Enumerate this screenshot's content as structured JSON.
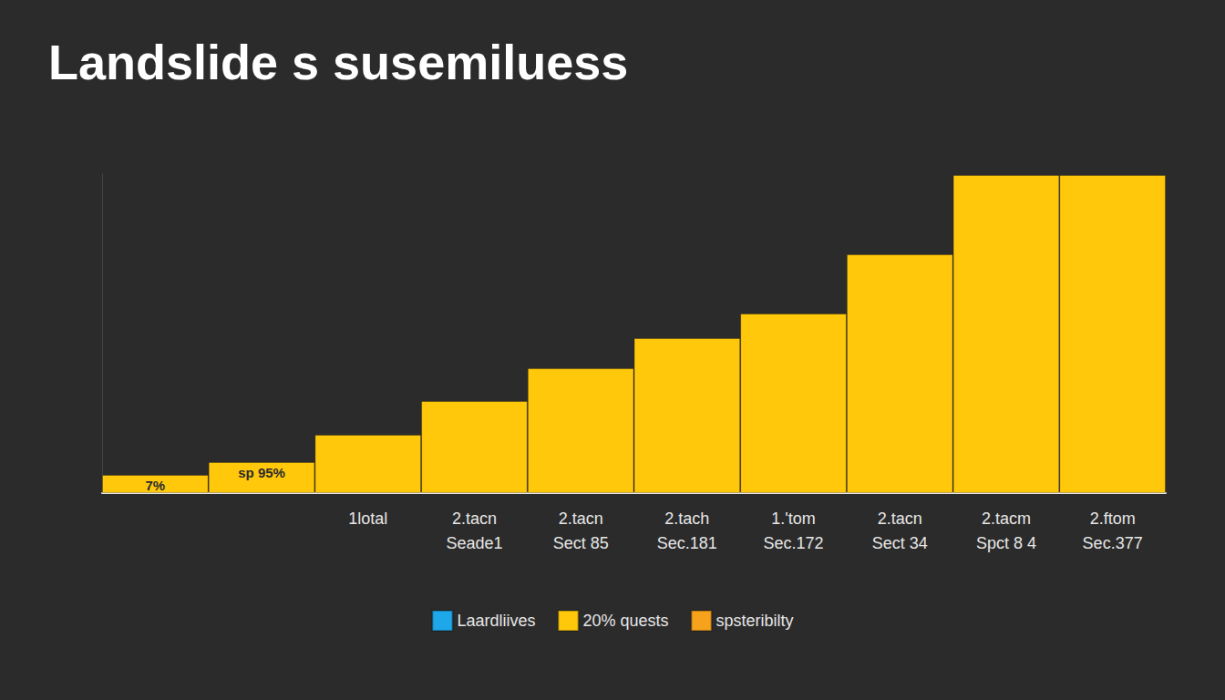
{
  "chart_data": {
    "type": "bar",
    "title": "Landslide s susemiluess",
    "categories": [
      null,
      null,
      "1lotal",
      "2.tacn\nSeade1",
      "2.tacn\nSect 85",
      "2.tach\nSec.181",
      "1.'tom\nSec.172",
      "2.tacn\nSect 34",
      "2.tacm\nSpct 8 4",
      "2.ftom\nSec.377"
    ],
    "series": [
      {
        "name": "Laardliives",
        "color": "#1ea7e9",
        "values": [
          null,
          null,
          null,
          null,
          null,
          null,
          null,
          null,
          null,
          null
        ]
      },
      {
        "name": "20% quests",
        "color": "#ffc80b",
        "values": [
          20,
          34,
          64,
          101,
          137,
          170,
          197,
          262,
          349,
          349
        ],
        "bar_texts": [
          "7%",
          "sp 95%",
          null,
          null,
          null,
          null,
          null,
          null,
          null,
          null
        ]
      },
      {
        "name": "spsteribilty",
        "color": "#f7a21b",
        "values": [
          null,
          null,
          null,
          null,
          null,
          null,
          null,
          null,
          null,
          null
        ]
      }
    ],
    "ylim": [
      0,
      350
    ],
    "stacked": true,
    "grid": false,
    "legend": "bottom",
    "tick_labels": "x"
  }
}
